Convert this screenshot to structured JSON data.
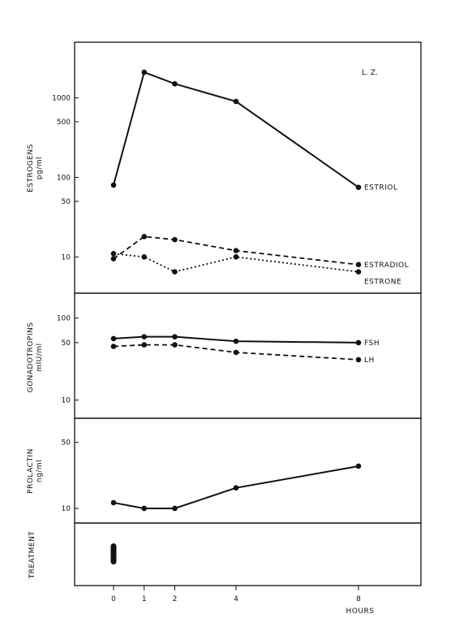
{
  "chart_data": {
    "type": "line",
    "x_label": "HOURS",
    "x_ticks": [
      0,
      1,
      2,
      4,
      8
    ],
    "panels": [
      {
        "id": "estrogens",
        "ylabel_line1": "ESTROGENS",
        "ylabel_line2": "pg/ml",
        "yscale": "log",
        "ylim": [
          3.5,
          5000
        ],
        "yticks": [
          10,
          50,
          100,
          500,
          1000
        ],
        "annotation": "L. Z.",
        "series": [
          {
            "name": "ESTRIOL",
            "style": "solid",
            "x": [
              0,
              1,
              2,
              4,
              8
            ],
            "y": [
              80,
              2100,
              1500,
              900,
              75
            ]
          },
          {
            "name": "ESTRADIOL",
            "style": "dashed",
            "x": [
              0,
              1,
              2,
              4,
              8
            ],
            "y": [
              9.5,
              18,
              16.5,
              12,
              8
            ]
          },
          {
            "name": "ESTRONE",
            "style": "dotted",
            "x": [
              0,
              1,
              2,
              4,
              8
            ],
            "y": [
              11,
              10,
              6.5,
              10,
              6.5
            ]
          }
        ]
      },
      {
        "id": "gonadotropins",
        "ylabel_line1": "GONADOTROPINS",
        "ylabel_line2": "mIU/ml",
        "yscale": "log",
        "ylim": [
          6,
          200
        ],
        "yticks": [
          10,
          50,
          100
        ],
        "series": [
          {
            "name": "FSH",
            "style": "solid",
            "x": [
              0,
              1,
              2,
              4,
              8
            ],
            "y": [
              56,
              59,
              59,
              52,
              50
            ]
          },
          {
            "name": "LH",
            "style": "dashed",
            "x": [
              0,
              1,
              2,
              4,
              8
            ],
            "y": [
              45,
              47,
              47,
              38,
              31
            ]
          }
        ]
      },
      {
        "id": "prolactin",
        "ylabel_line1": "PROLACTIN",
        "ylabel_line2": "ng/ml",
        "yscale": "log",
        "ylim": [
          7,
          90
        ],
        "yticks": [
          10,
          50
        ],
        "series": [
          {
            "name": "",
            "style": "solid",
            "x": [
              0,
              1,
              2,
              4,
              8
            ],
            "y": [
              11.5,
              10,
              10,
              16.5,
              28
            ]
          }
        ]
      },
      {
        "id": "treatment",
        "ylabel_line1": "TREATMENT",
        "marker_at_hour": 0
      }
    ]
  }
}
